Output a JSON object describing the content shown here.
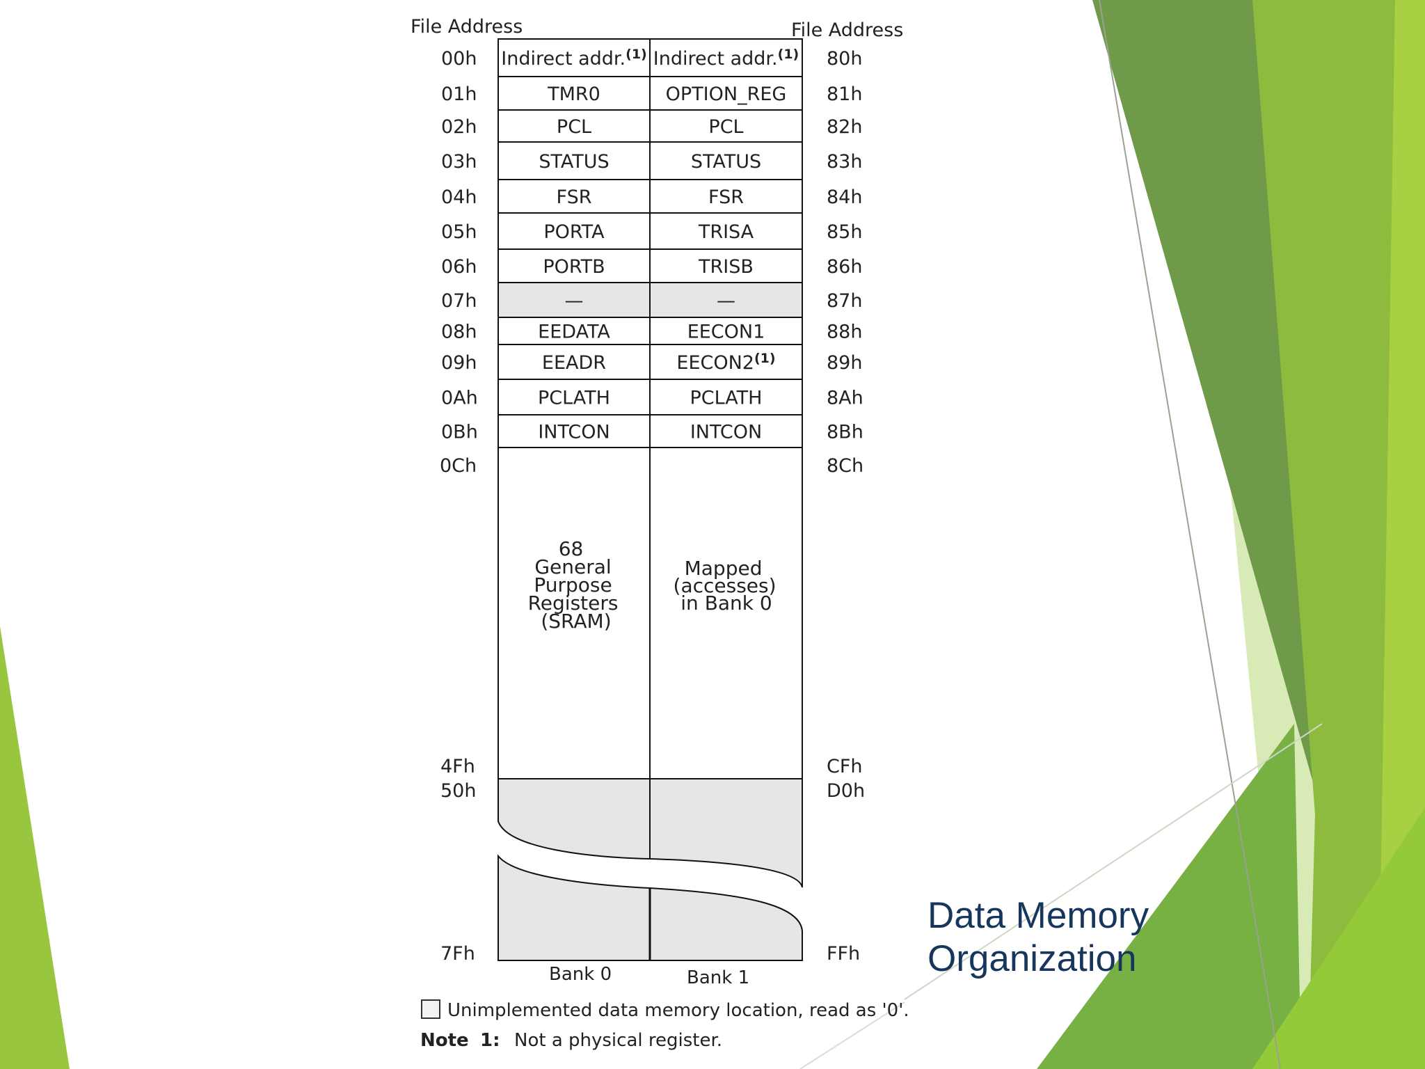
{
  "header": {
    "left_label": "File Address",
    "right_label": "File Address"
  },
  "rows": [
    {
      "left_addr": "00h",
      "bank0": "Indirect addr.",
      "bank0_sup": "(1)",
      "bank1": "Indirect addr.",
      "bank1_sup": "(1)",
      "right_addr": "80h"
    },
    {
      "left_addr": "01h",
      "bank0": "TMR0",
      "bank1": "OPTION_REG",
      "right_addr": "81h"
    },
    {
      "left_addr": "02h",
      "bank0": "PCL",
      "bank1": "PCL",
      "right_addr": "82h"
    },
    {
      "left_addr": "03h",
      "bank0": "STATUS",
      "bank1": "STATUS",
      "right_addr": "83h"
    },
    {
      "left_addr": "04h",
      "bank0": "FSR",
      "bank1": "FSR",
      "right_addr": "84h"
    },
    {
      "left_addr": "05h",
      "bank0": "PORTA",
      "bank1": "TRISA",
      "right_addr": "85h"
    },
    {
      "left_addr": "06h",
      "bank0": "PORTB",
      "bank1": "TRISB",
      "right_addr": "86h"
    },
    {
      "left_addr": "07h",
      "bank0": "—",
      "bank1": "—",
      "right_addr": "87h",
      "unimplemented": true
    },
    {
      "left_addr": "08h",
      "bank0": "EEDATA",
      "bank1": "EECON1",
      "right_addr": "88h"
    },
    {
      "left_addr": "09h",
      "bank0": "EEADR",
      "bank1": "EECON2",
      "bank1_sup": "(1)",
      "right_addr": "89h"
    },
    {
      "left_addr": "0Ah",
      "bank0": "PCLATH",
      "bank1": "PCLATH",
      "right_addr": "8Ah"
    },
    {
      "left_addr": "0Bh",
      "bank0": "INTCON",
      "bank1": "INTCON",
      "right_addr": "8Bh"
    }
  ],
  "gpr": {
    "left_start": "0Ch",
    "right_start": "8Ch",
    "bank0_lines": [
      "68",
      "General",
      "Purpose",
      "Registers",
      "(SRAM)"
    ],
    "bank1_lines": [
      "Mapped",
      "(accesses)",
      "in Bank 0"
    ],
    "left_end": "4Fh",
    "right_end": "CFh"
  },
  "unimplemented_region": {
    "left_start": "50h",
    "right_start": "D0h",
    "left_end": "7Fh",
    "right_end": "FFh"
  },
  "bank_labels": [
    "Bank 0",
    "Bank 1"
  ],
  "legend": {
    "text": "Unimplemented data memory location, read as '0'.",
    "note_label": "Note",
    "note_number": "1:",
    "note_text": "Not a physical register."
  },
  "slide_title": [
    "Data Memory",
    "Organization"
  ],
  "colors": {
    "title": "#17365d",
    "unimplemented_fill": "#e6e6e9",
    "green_dark": "#5e8f3c",
    "green_mid": "#7cb342",
    "green_light": "#a5cd4b",
    "green_pale": "#d3e8ad"
  }
}
